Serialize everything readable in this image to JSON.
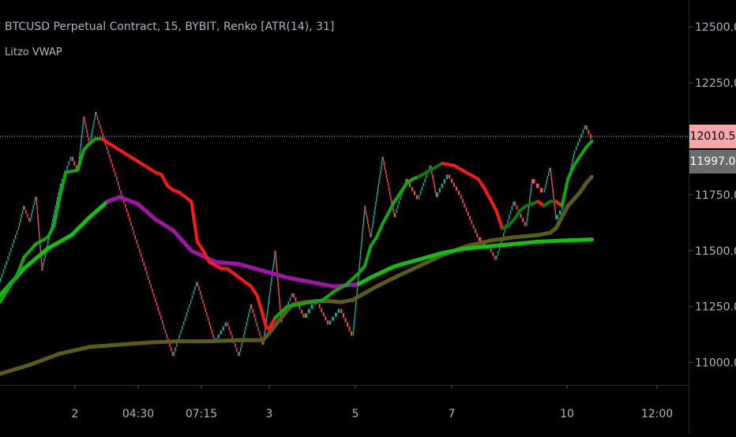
{
  "header": {
    "title": "BTCUSD Perpetual Contract, 15, BYBIT, Renko [ATR(14), 31]",
    "indicator": "Litzo VWAP"
  },
  "price_tags": {
    "last": "12010.5",
    "vwap": "11997.0",
    "last_color": "#f4a8a8",
    "vwap_color": "#6b6b6b"
  },
  "colors": {
    "up_brick": "#26a69a",
    "down_brick": "#ef5350",
    "vwap_green": "#11a811",
    "vwap_red": "#ff1a1a",
    "vwap_dark_green": "#0d7a0d",
    "session_purple": "#a313a8",
    "session_green": "#11c011",
    "anchor_olive": "#5c5c18",
    "axis_text": "#b2b5be",
    "axis_line": "#2a2a2a"
  },
  "chart_data": {
    "type": "line",
    "title": "BTCUSD Perpetual Contract, 15, BYBIT, Renko [ATR(14), 31]",
    "x_ticks": [
      "2",
      "04:30",
      "07:15",
      "3",
      "5",
      "7",
      "10",
      "12:00"
    ],
    "y_ticks": [
      11000.0,
      11250.0,
      11500.0,
      11750.0,
      12000.0,
      12250.0,
      12500.0
    ],
    "ylim": [
      10900,
      12620
    ],
    "x_index_range": [
      0,
      100
    ],
    "last_price": 12010.5,
    "renko_close_path": [
      [
        0,
        11360
      ],
      [
        3,
        11590
      ],
      [
        4,
        11700
      ],
      [
        5,
        11630
      ],
      [
        6,
        11740
      ],
      [
        7,
        11410
      ],
      [
        10,
        11780
      ],
      [
        12,
        11920
      ],
      [
        13,
        11860
      ],
      [
        14,
        12100
      ],
      [
        15,
        11970
      ],
      [
        16,
        12120
      ],
      [
        18,
        11950
      ],
      [
        29,
        11030
      ],
      [
        33,
        11360
      ],
      [
        36,
        11090
      ],
      [
        38,
        11180
      ],
      [
        40,
        11030
      ],
      [
        42,
        11260
      ],
      [
        44,
        11080
      ],
      [
        46,
        11500
      ],
      [
        47,
        11180
      ],
      [
        49,
        11310
      ],
      [
        51,
        11200
      ],
      [
        53,
        11280
      ],
      [
        55,
        11170
      ],
      [
        57,
        11240
      ],
      [
        59,
        11120
      ],
      [
        61,
        11700
      ],
      [
        62,
        11560
      ],
      [
        64,
        11920
      ],
      [
        66,
        11650
      ],
      [
        68,
        11820
      ],
      [
        70,
        11730
      ],
      [
        72,
        11880
      ],
      [
        73,
        11740
      ],
      [
        75,
        11840
      ],
      [
        77,
        11750
      ],
      [
        80,
        11560
      ],
      [
        82,
        11510
      ],
      [
        83,
        11460
      ],
      [
        86,
        11720
      ],
      [
        88,
        11610
      ],
      [
        89,
        11820
      ],
      [
        91,
        11760
      ],
      [
        92,
        11870
      ],
      [
        93,
        11640
      ],
      [
        94,
        11680
      ],
      [
        96,
        11930
      ],
      [
        98,
        12060
      ],
      [
        99,
        12000
      ]
    ],
    "series": [
      {
        "name": "",
        "style": "vwap",
        "points": [
          [
            0,
            11270
          ],
          [
            3,
            11400
          ],
          [
            4,
            11470
          ],
          [
            6,
            11530
          ],
          [
            8,
            11560
          ],
          [
            9,
            11610
          ],
          [
            10,
            11740
          ],
          [
            11,
            11850
          ],
          [
            13,
            11860
          ],
          [
            14,
            11950
          ],
          [
            15,
            11980
          ],
          [
            16,
            12000
          ],
          [
            17,
            12000
          ],
          [
            26,
            11850
          ],
          [
            27,
            11840
          ],
          [
            28,
            11790
          ],
          [
            29,
            11770
          ],
          [
            30,
            11760
          ],
          [
            31,
            11740
          ],
          [
            32,
            11720
          ],
          [
            33,
            11540
          ],
          [
            34,
            11500
          ],
          [
            35,
            11450
          ],
          [
            37,
            11420
          ],
          [
            38,
            11420
          ],
          [
            40,
            11380
          ],
          [
            42,
            11340
          ],
          [
            43,
            11300
          ],
          [
            44,
            11210
          ],
          [
            44.5,
            11160
          ],
          [
            45,
            11150
          ],
          [
            46,
            11200
          ],
          [
            48,
            11250
          ],
          [
            50,
            11260
          ],
          [
            52,
            11270
          ],
          [
            54,
            11280
          ],
          [
            56,
            11320
          ],
          [
            58,
            11350
          ],
          [
            60,
            11400
          ],
          [
            61,
            11430
          ],
          [
            62,
            11520
          ],
          [
            63,
            11560
          ],
          [
            64,
            11620
          ],
          [
            66,
            11720
          ],
          [
            67,
            11760
          ],
          [
            68,
            11800
          ],
          [
            69,
            11820
          ],
          [
            70,
            11830
          ],
          [
            72,
            11860
          ],
          [
            74,
            11890
          ],
          [
            76,
            11880
          ],
          [
            78,
            11850
          ],
          [
            80,
            11820
          ],
          [
            81,
            11780
          ],
          [
            83,
            11680
          ],
          [
            84,
            11600
          ],
          [
            85,
            11610
          ],
          [
            86,
            11640
          ],
          [
            87,
            11680
          ],
          [
            88,
            11700
          ],
          [
            89,
            11710
          ],
          [
            90,
            11720
          ],
          [
            91,
            11700
          ],
          [
            92,
            11720
          ],
          [
            93,
            11720
          ],
          [
            94,
            11700
          ],
          [
            95,
            11820
          ],
          [
            96,
            11880
          ],
          [
            97,
            11920
          ],
          [
            98,
            11960
          ],
          [
            99,
            11990
          ]
        ]
      },
      {
        "name": "",
        "style": "session",
        "points": [
          [
            0,
            11300
          ],
          [
            4,
            11420
          ],
          [
            8,
            11510
          ],
          [
            12,
            11570
          ],
          [
            15,
            11650
          ],
          [
            18,
            11720
          ],
          [
            20,
            11740
          ],
          [
            23,
            11710
          ],
          [
            26,
            11640
          ],
          [
            29,
            11590
          ],
          [
            32,
            11500
          ],
          [
            36,
            11450
          ],
          [
            40,
            11440
          ],
          [
            44,
            11410
          ],
          [
            48,
            11380
          ],
          [
            52,
            11360
          ],
          [
            56,
            11340
          ],
          [
            60,
            11350
          ],
          [
            62,
            11380
          ],
          [
            66,
            11430
          ],
          [
            70,
            11460
          ],
          [
            74,
            11490
          ],
          [
            78,
            11510
          ],
          [
            82,
            11520
          ],
          [
            86,
            11530
          ],
          [
            90,
            11540
          ],
          [
            94,
            11545
          ],
          [
            99,
            11550
          ]
        ]
      },
      {
        "name": "",
        "style": "anchor",
        "points": [
          [
            0,
            10950
          ],
          [
            5,
            10990
          ],
          [
            10,
            11040
          ],
          [
            15,
            11070
          ],
          [
            20,
            11080
          ],
          [
            25,
            11090
          ],
          [
            30,
            11095
          ],
          [
            35,
            11095
          ],
          [
            40,
            11100
          ],
          [
            44,
            11100
          ],
          [
            45,
            11130
          ],
          [
            47,
            11200
          ],
          [
            49,
            11260
          ],
          [
            51,
            11270
          ],
          [
            53,
            11275
          ],
          [
            55,
            11275
          ],
          [
            57,
            11270
          ],
          [
            59,
            11280
          ],
          [
            61,
            11310
          ],
          [
            63,
            11340
          ],
          [
            66,
            11380
          ],
          [
            70,
            11430
          ],
          [
            74,
            11480
          ],
          [
            78,
            11520
          ],
          [
            82,
            11545
          ],
          [
            86,
            11560
          ],
          [
            90,
            11570
          ],
          [
            92,
            11580
          ],
          [
            93,
            11600
          ],
          [
            95,
            11700
          ],
          [
            97,
            11760
          ],
          [
            98,
            11800
          ],
          [
            99,
            11830
          ]
        ]
      }
    ]
  }
}
